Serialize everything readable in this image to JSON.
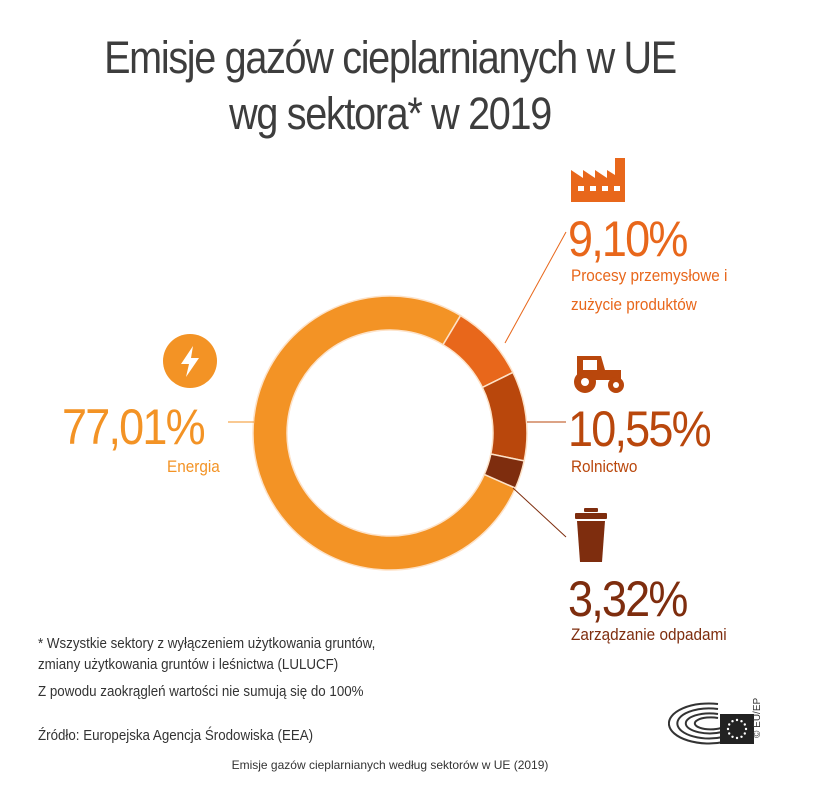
{
  "title": {
    "line1": "Emisje gazów cieplarnianych w UE",
    "line2": "wg sektora* w 2019"
  },
  "chart_data": {
    "type": "pie",
    "variant": "donut",
    "title": "Emisje gazów cieplarnianych w UE wg sektora* w 2019",
    "slices": [
      {
        "label": "Energia",
        "value": 77.01,
        "display": "77,01%",
        "color": "#F39325",
        "icon": "lightning-icon"
      },
      {
        "label": "Procesy przemysłowe i zużycie produktów",
        "display": "9,10%",
        "value": 9.1,
        "color": "#E8671B",
        "icon": "factory-icon"
      },
      {
        "label": "Rolnictwo",
        "value": 10.55,
        "display": "10,55%",
        "color": "#B9470C",
        "icon": "tractor-icon"
      },
      {
        "label": "Zarządzanie odpadami",
        "value": 3.32,
        "display": "3,32%",
        "color": "#7E2D0E",
        "icon": "trash-bin-icon"
      }
    ]
  },
  "labels": {
    "energy": {
      "pct": "77,01%",
      "name": "Energia"
    },
    "industry": {
      "pct": "9,10%",
      "name1": "Procesy przemysłowe i",
      "name2": "zużycie produktów"
    },
    "agriculture": {
      "pct": "10,55%",
      "name": "Rolnictwo"
    },
    "waste": {
      "pct": "3,32%",
      "name": "Zarządzanie odpadami"
    }
  },
  "footnotes": {
    "note1": "* Wszystkie sektory z wyłączeniem użytkowania gruntów,",
    "note2": "zmiany użytkowania gruntów i leśnictwa (LULUCF)",
    "note3": "Z powodu zaokrągleń wartości nie sumują się do 100%",
    "source": "Źródło: Europejska Agencja Środowiska (EEA)"
  },
  "logo": {
    "copyright": "© EU/EP"
  },
  "caption": "Emisje gazów cieplarnianych według sektorów w UE (2019)"
}
